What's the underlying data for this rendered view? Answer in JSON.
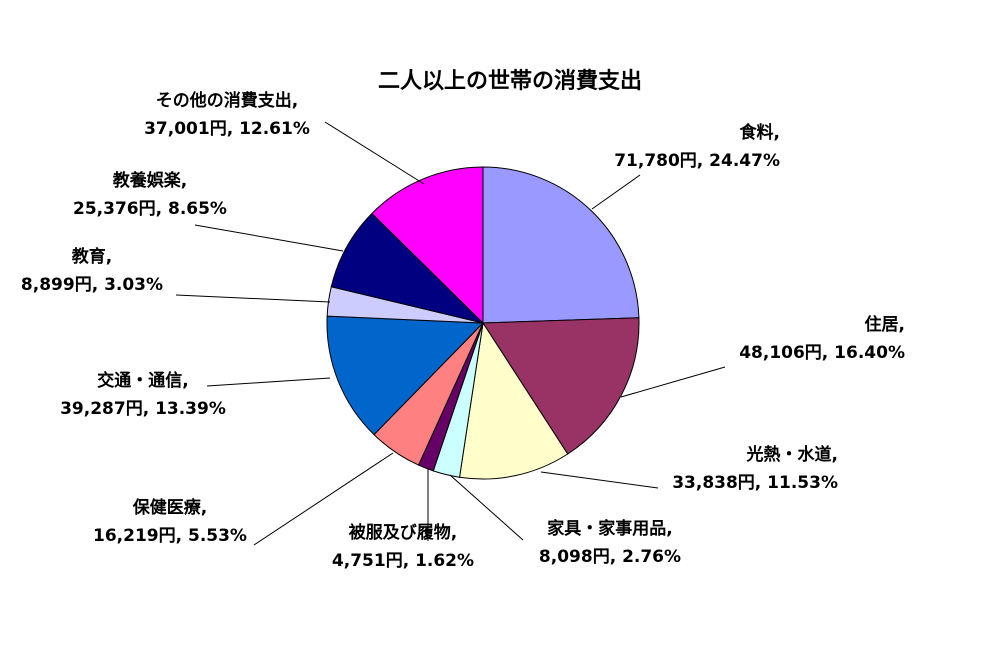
{
  "chart_data": {
    "type": "pie",
    "title": "二人以上の世帯の消費支出",
    "legend": "none",
    "slices": [
      {
        "name": "食料",
        "value_text": "71,780円",
        "value": 71780,
        "percent_text": "24.47%",
        "percent": 24.47,
        "color": "#9999FF"
      },
      {
        "name": "住居",
        "value_text": "48,106円",
        "value": 48106,
        "percent_text": "16.40%",
        "percent": 16.4,
        "color": "#993366"
      },
      {
        "name": "光熱・水道",
        "value_text": "33,838円",
        "value": 33838,
        "percent_text": "11.53%",
        "percent": 11.53,
        "color": "#FFFFCC"
      },
      {
        "name": "家具・家事用品",
        "value_text": "8,098円",
        "value": 8098,
        "percent_text": "2.76%",
        "percent": 2.76,
        "color": "#CCFFFF"
      },
      {
        "name": "被服及び履物",
        "value_text": "4,751円",
        "value": 4751,
        "percent_text": "1.62%",
        "percent": 1.62,
        "color": "#660066"
      },
      {
        "name": "保健医療",
        "value_text": "16,219円",
        "value": 16219,
        "percent_text": "5.53%",
        "percent": 5.53,
        "color": "#FF8080"
      },
      {
        "name": "交通・通信",
        "value_text": "39,287円",
        "value": 39287,
        "percent_text": "13.39%",
        "percent": 13.39,
        "color": "#0066CC"
      },
      {
        "name": "教育",
        "value_text": "8,899円",
        "value": 8899,
        "percent_text": "3.03%",
        "percent": 3.03,
        "color": "#CCCCFF"
      },
      {
        "name": "教養娯楽",
        "value_text": "25,376円",
        "value": 25376,
        "percent_text": "8.65%",
        "percent": 8.65,
        "color": "#000080"
      },
      {
        "name": "その他の消費支出",
        "value_text": "37,001円",
        "value": 37001,
        "percent_text": "12.61%",
        "percent": 12.61,
        "color": "#FF00FF"
      }
    ]
  }
}
